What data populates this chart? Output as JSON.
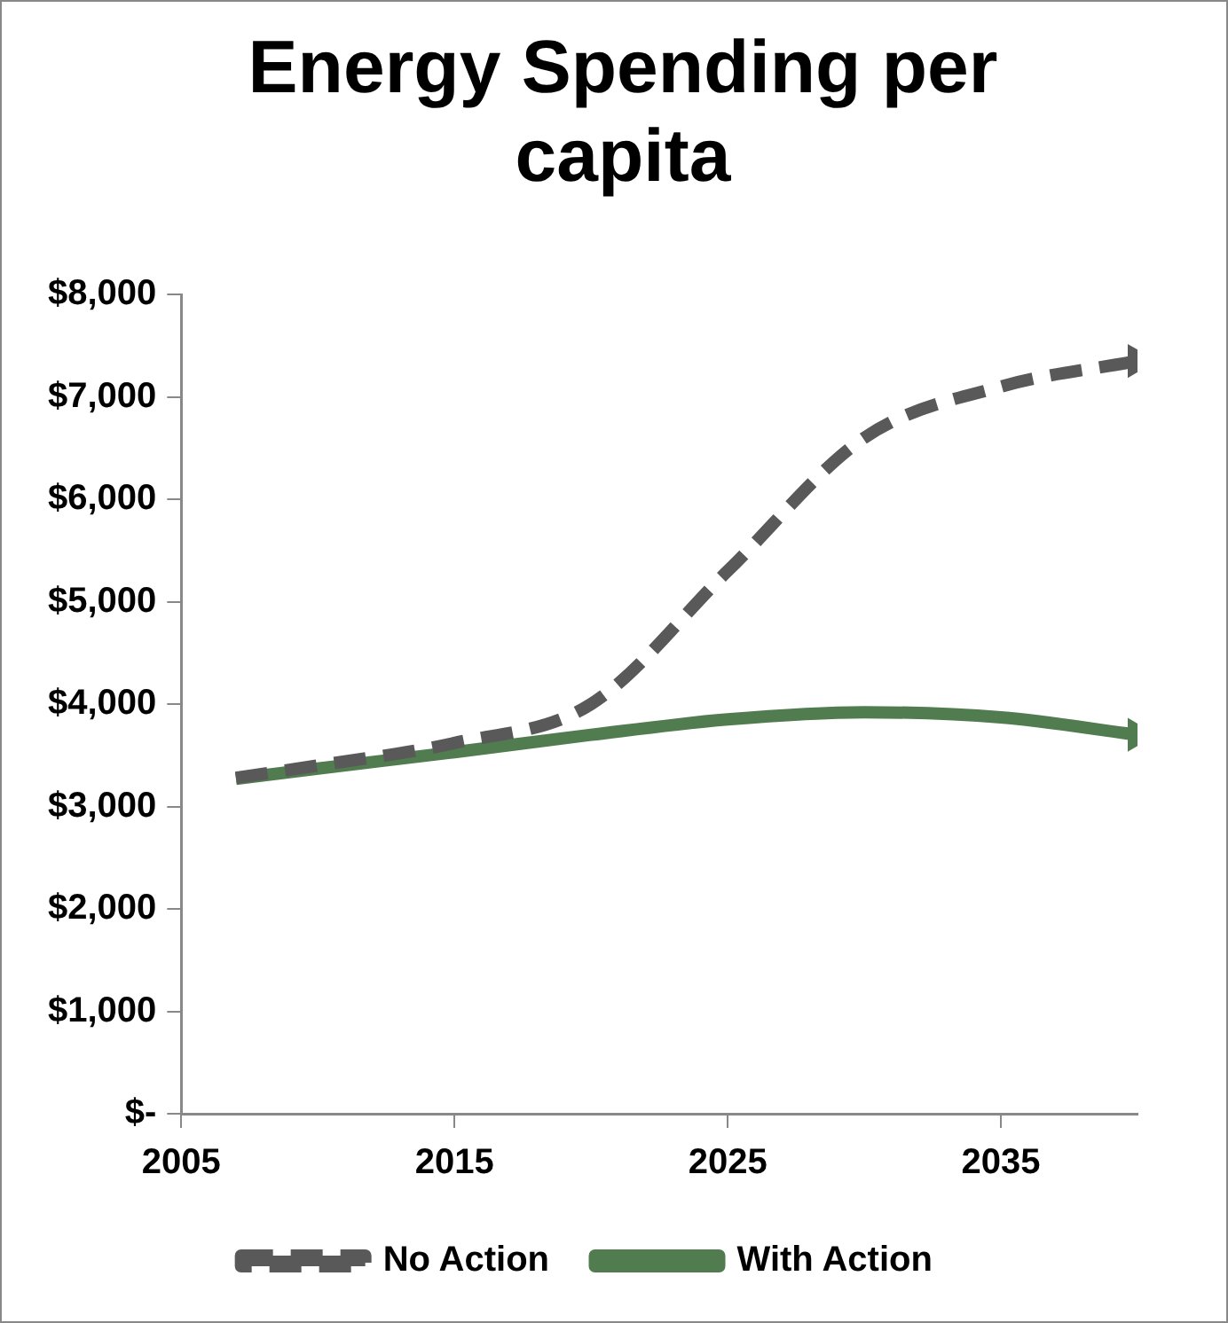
{
  "chart_data": {
    "type": "line",
    "title": "Energy Spending per capita",
    "x": [
      2007,
      2010,
      2015,
      2020,
      2025,
      2030,
      2035,
      2040
    ],
    "series": [
      {
        "name": "No Action",
        "color": "#595959",
        "line_style": "dashed",
        "values": [
          3280,
          3400,
          3620,
          4000,
          5300,
          6600,
          7100,
          7350
        ]
      },
      {
        "name": "With Action",
        "color": "#507c50",
        "line_style": "solid",
        "values": [
          3270,
          3370,
          3530,
          3700,
          3850,
          3920,
          3870,
          3700
        ]
      }
    ],
    "xlim": [
      2005,
      2040
    ],
    "xticks": [
      2005,
      2015,
      2025,
      2035
    ],
    "ylim": [
      0,
      8000
    ],
    "yticks": [
      {
        "value": 0,
        "label": "$-"
      },
      {
        "value": 1000,
        "label": "$1,000"
      },
      {
        "value": 2000,
        "label": "$2,000"
      },
      {
        "value": 3000,
        "label": "$3,000"
      },
      {
        "value": 4000,
        "label": "$4,000"
      },
      {
        "value": 5000,
        "label": "$5,000"
      },
      {
        "value": 6000,
        "label": "$6,000"
      },
      {
        "value": 7000,
        "label": "$7,000"
      },
      {
        "value": 8000,
        "label": "$8,000"
      }
    ],
    "grid": false,
    "legend": "bottom"
  }
}
